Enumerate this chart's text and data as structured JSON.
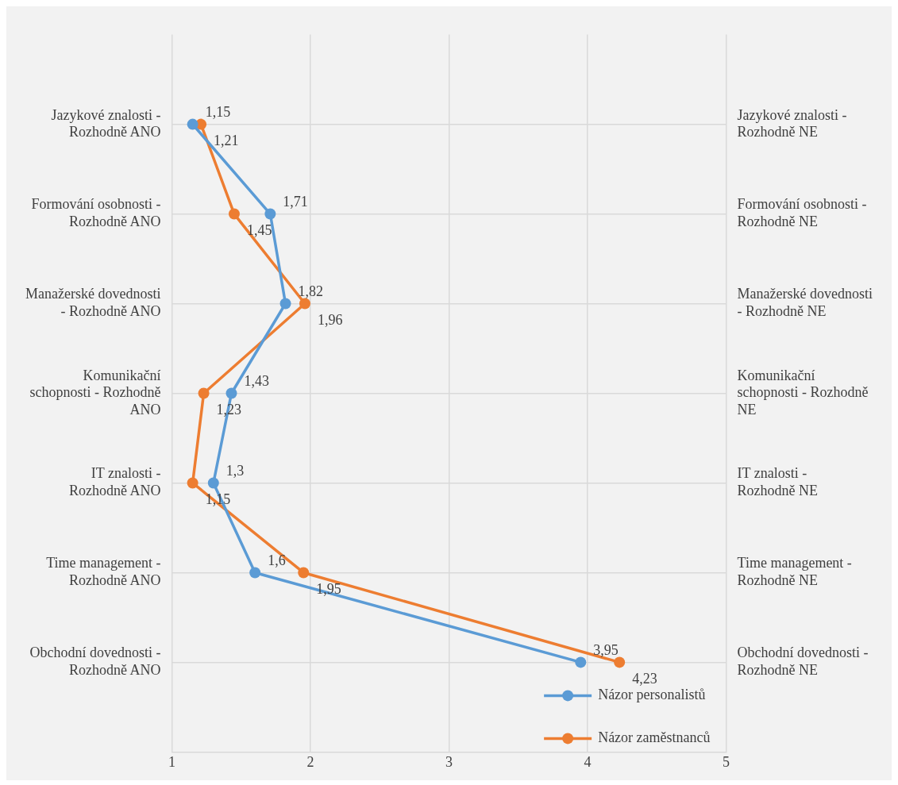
{
  "chart_data": {
    "type": "line",
    "orientation": "horizontal",
    "categories": [
      "Jazykové znalosti - Rozhodně ANO",
      "Formování osobnosti - Rozhodně ANO",
      "Manažerské dovednosti - Rozhodně ANO",
      "Komunikační schopnosti - Rozhodně ANO",
      "IT znalosti - Rozhodně ANO",
      "Time management - Rozhodně ANO",
      "Obchodní dovednosti - Rozhodně ANO"
    ],
    "y2_categories": [
      "Jazykové znalosti - Rozhodně NE",
      "Formování osobnosti - Rozhodně NE",
      "Manažerské dovednosti - Rozhodně NE",
      "Komunikační schopnosti - Rozhodně NE",
      "IT znalosti - Rozhodně NE",
      "Time management - Rozhodně NE",
      "Obchodní dovednosti - Rozhodně NE"
    ],
    "series": [
      {
        "name": "Názor personalistů",
        "color": "#5b9bd5",
        "values": [
          1.15,
          1.71,
          1.82,
          1.43,
          1.3,
          1.6,
          3.95
        ],
        "value_labels": [
          "1,15",
          "1,71",
          "1,82",
          "1,43",
          "1,3",
          "1,6",
          "3,95"
        ]
      },
      {
        "name": "Názor zaměstnanců",
        "color": "#ed7d31",
        "values": [
          1.21,
          1.45,
          1.96,
          1.23,
          1.15,
          1.95,
          4.23
        ],
        "value_labels": [
          "1,21",
          "1,45",
          "1,96",
          "1,23",
          "1,15",
          "1,95",
          "4,23"
        ]
      }
    ],
    "xlim": [
      1,
      5
    ],
    "xticks": [
      1,
      2,
      3,
      4,
      5
    ],
    "grid": true,
    "legend": "bottom right",
    "marker": "circle",
    "line_style": "solid"
  }
}
